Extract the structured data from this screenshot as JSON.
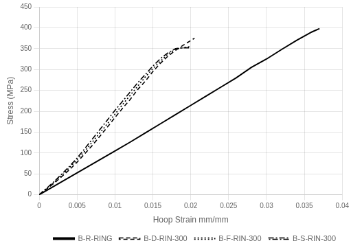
{
  "chart_data": {
    "type": "line",
    "xlabel": "Hoop Strain mm/mm",
    "ylabel": "Stress (MPa)",
    "xlim": [
      0,
      0.04
    ],
    "ylim": [
      0,
      450
    ],
    "xticks": [
      0,
      0.005,
      0.01,
      0.015,
      0.02,
      0.025,
      0.03,
      0.035,
      0.04
    ],
    "yticks": [
      0,
      50,
      100,
      150,
      200,
      250,
      300,
      350,
      400,
      450
    ],
    "grid": true,
    "legend": "lower right",
    "series": [
      {
        "name": "B-R-RING",
        "color": "#000000",
        "line_style": "solid",
        "x": [
          0,
          0.002,
          0.004,
          0.006,
          0.008,
          0.01,
          0.012,
          0.014,
          0.016,
          0.018,
          0.02,
          0.022,
          0.024,
          0.026,
          0.028,
          0.03,
          0.032,
          0.034,
          0.036,
          0.037
        ],
        "values": [
          0,
          21,
          42,
          63,
          84,
          105,
          126,
          148,
          170,
          192,
          214,
          236,
          258,
          280,
          305,
          325,
          348,
          370,
          390,
          398
        ]
      },
      {
        "name": "B-D-RIN-300",
        "color": "#000000",
        "line_style": "dashed",
        "x": [
          0,
          0.001,
          0.002,
          0.003,
          0.004,
          0.005,
          0.006,
          0.007,
          0.008,
          0.009,
          0.01,
          0.011,
          0.012,
          0.013,
          0.014,
          0.015,
          0.016,
          0.017,
          0.018,
          0.019,
          0.0205
        ],
        "values": [
          0,
          14,
          28,
          44,
          60,
          78,
          98,
          118,
          140,
          162,
          185,
          207,
          228,
          252,
          272,
          295,
          315,
          332,
          346,
          358,
          375
        ]
      },
      {
        "name": "B-F-RIN-300",
        "color": "#000000",
        "line_style": "dotted",
        "x": [
          0,
          0.001,
          0.002,
          0.003,
          0.004,
          0.005,
          0.006,
          0.007,
          0.008,
          0.009,
          0.01,
          0.011,
          0.012,
          0.013,
          0.014,
          0.015,
          0.016,
          0.017,
          0.018,
          0.019,
          0.02
        ],
        "values": [
          0,
          15,
          30,
          47,
          65,
          84,
          104,
          126,
          148,
          170,
          193,
          216,
          238,
          260,
          282,
          302,
          320,
          337,
          349,
          352,
          355
        ]
      },
      {
        "name": "B-S-RIN-300",
        "color": "#000000",
        "line_style": "dashdot",
        "x": [
          0,
          0.001,
          0.002,
          0.003,
          0.004,
          0.005,
          0.006,
          0.007,
          0.008,
          0.009,
          0.01,
          0.011,
          0.012,
          0.013,
          0.014,
          0.015,
          0.016,
          0.017,
          0.018,
          0.019,
          0.02
        ],
        "values": [
          0,
          16,
          32,
          50,
          68,
          88,
          110,
          133,
          156,
          179,
          202,
          224,
          246,
          268,
          288,
          308,
          326,
          340,
          350,
          352,
          352
        ]
      }
    ]
  }
}
